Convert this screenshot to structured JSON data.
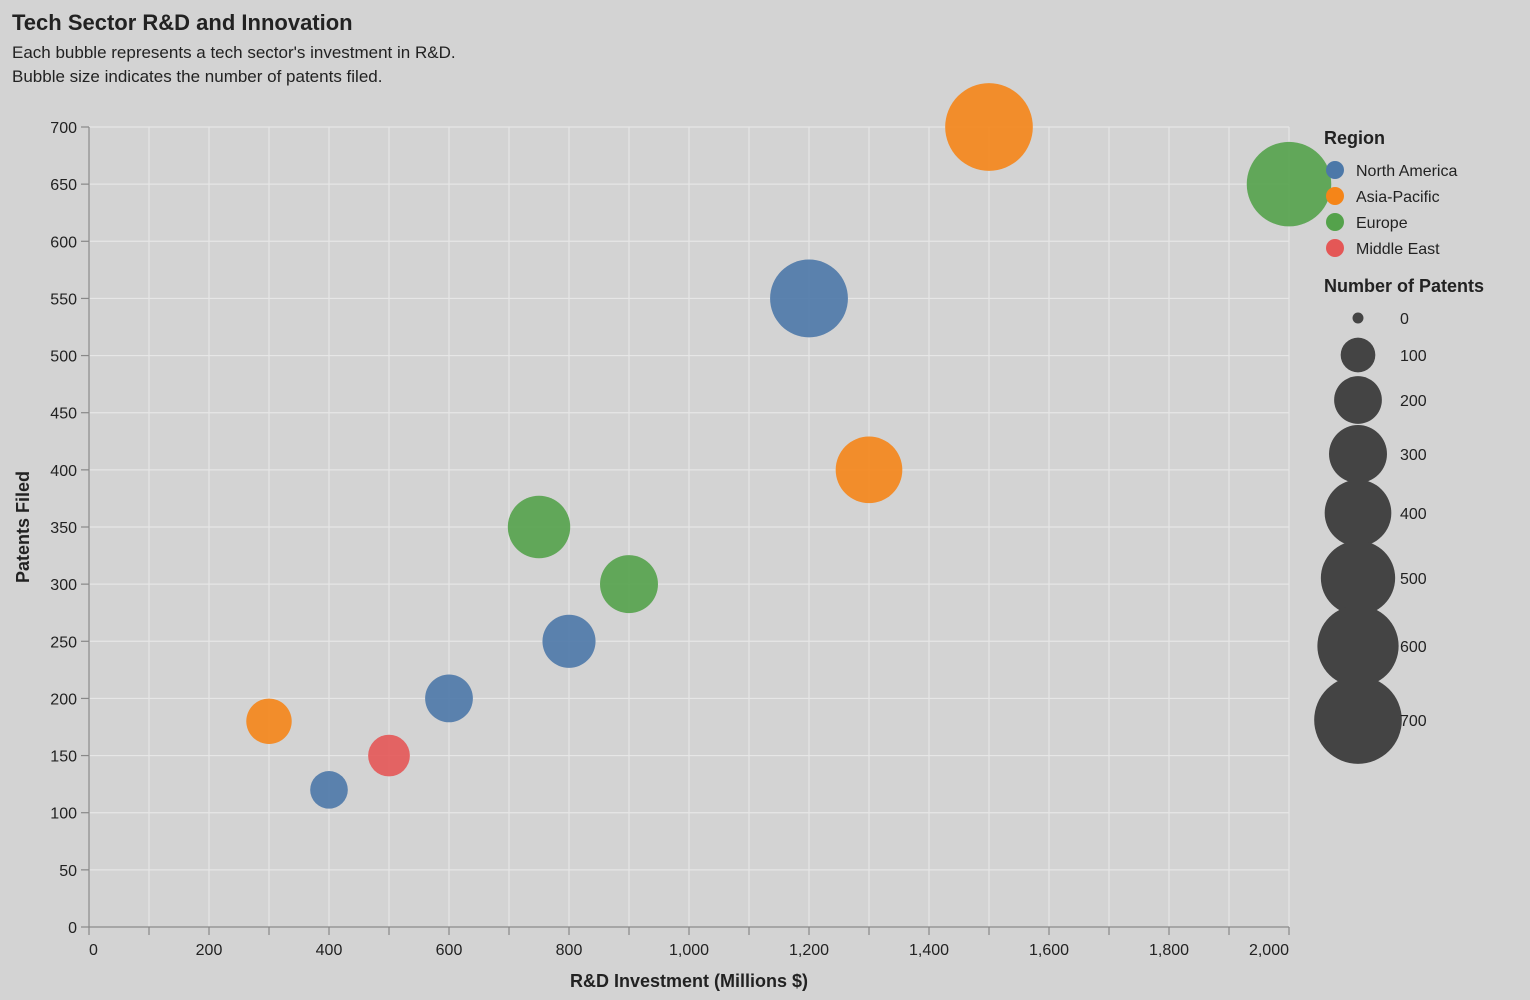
{
  "chart_data": {
    "type": "scatter",
    "title": "Tech Sector R&D and Innovation",
    "subtitle": [
      "Each bubble represents a tech sector's investment in R&D.",
      "Bubble size indicates the number of patents filed."
    ],
    "xlabel": "R&D Investment (Millions $)",
    "ylabel": "Patents Filed",
    "xlim": [
      0,
      2000
    ],
    "ylim": [
      0,
      700
    ],
    "x_ticks": [
      "0",
      "200",
      "400",
      "600",
      "800",
      "1,000",
      "1,200",
      "1,400",
      "1,600",
      "1,800",
      "2,000"
    ],
    "x_tick_values": [
      0,
      200,
      400,
      600,
      800,
      1000,
      1200,
      1400,
      1600,
      1800,
      2000
    ],
    "y_ticks": [
      0,
      50,
      100,
      150,
      200,
      250,
      300,
      350,
      400,
      450,
      500,
      550,
      600,
      650,
      700
    ],
    "grid": true,
    "color_legend": {
      "title": "Region",
      "placement": "right",
      "entries": [
        {
          "name": "North America",
          "color": "#4c78a8"
        },
        {
          "name": "Asia-Pacific",
          "color": "#f58518"
        },
        {
          "name": "Europe",
          "color": "#54a24b"
        },
        {
          "name": "Middle East",
          "color": "#e45756"
        }
      ]
    },
    "size_legend": {
      "title": "Number of Patents",
      "values": [
        0,
        100,
        200,
        300,
        400,
        500,
        600,
        700
      ]
    },
    "points": [
      {
        "region": "North America",
        "x": 1200,
        "y": 550
      },
      {
        "region": "North America",
        "x": 800,
        "y": 250
      },
      {
        "region": "North America",
        "x": 600,
        "y": 200
      },
      {
        "region": "North America",
        "x": 400,
        "y": 120
      },
      {
        "region": "Asia-Pacific",
        "x": 1500,
        "y": 700
      },
      {
        "region": "Asia-Pacific",
        "x": 1300,
        "y": 400
      },
      {
        "region": "Asia-Pacific",
        "x": 300,
        "y": 180
      },
      {
        "region": "Europe",
        "x": 2000,
        "y": 650
      },
      {
        "region": "Europe",
        "x": 750,
        "y": 350
      },
      {
        "region": "Europe",
        "x": 900,
        "y": 300
      },
      {
        "region": "Middle East",
        "x": 500,
        "y": 150
      }
    ]
  }
}
